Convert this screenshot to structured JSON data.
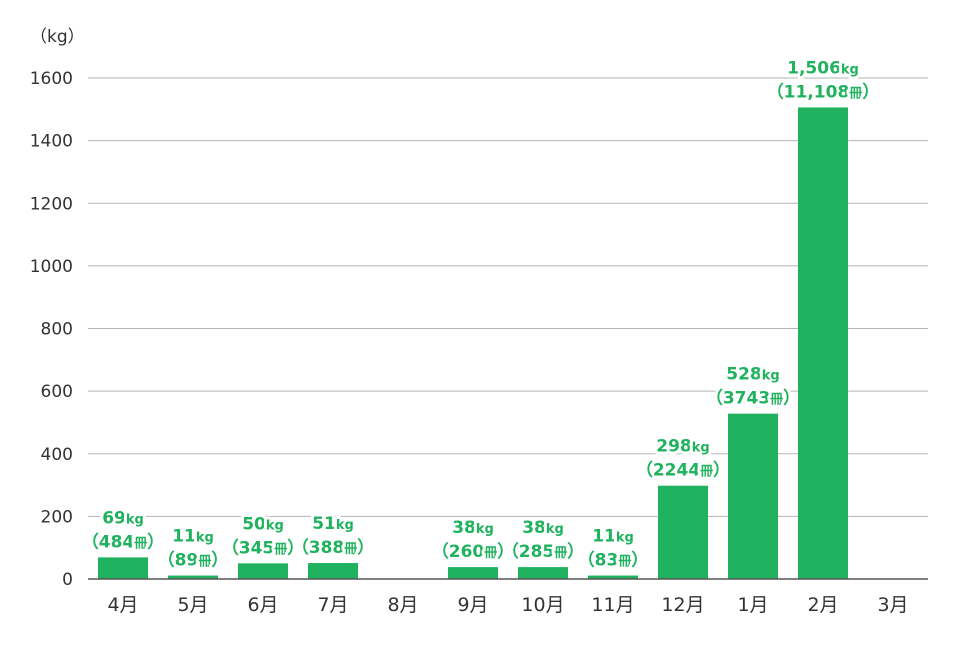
{
  "chart_data": {
    "type": "bar",
    "unit_label": "（kg）",
    "ylim": [
      0,
      1600
    ],
    "yticks": [
      0,
      200,
      400,
      600,
      800,
      1000,
      1200,
      1400,
      1600
    ],
    "grid": true,
    "bar_color": "#21b25f",
    "grid_color": "#b5b5b5",
    "categories": [
      "4月",
      "5月",
      "6月",
      "7月",
      "8月",
      "9月",
      "10月",
      "11月",
      "12月",
      "1月",
      "2月",
      "3月"
    ],
    "values": [
      69,
      11,
      50,
      51,
      null,
      38,
      38,
      11,
      298,
      528,
      1506,
      null
    ],
    "labels": [
      {
        "weight": "69",
        "weight_unit": "kg",
        "count_open": "（484",
        "count_unit": "冊",
        "count_close": "）"
      },
      {
        "weight": "11",
        "weight_unit": "kg",
        "count_open": "（89",
        "count_unit": "冊",
        "count_close": "）"
      },
      {
        "weight": "50",
        "weight_unit": "kg",
        "count_open": "（345",
        "count_unit": "冊",
        "count_close": "）"
      },
      {
        "weight": "51",
        "weight_unit": "kg",
        "count_open": "（388",
        "count_unit": "冊",
        "count_close": "）"
      },
      null,
      {
        "weight": "38",
        "weight_unit": "kg",
        "count_open": "（260",
        "count_unit": "冊",
        "count_close": "）"
      },
      {
        "weight": "38",
        "weight_unit": "kg",
        "count_open": "（285",
        "count_unit": "冊",
        "count_close": "）"
      },
      {
        "weight": "11",
        "weight_unit": "kg",
        "count_open": "（83",
        "count_unit": "冊",
        "count_close": "）"
      },
      {
        "weight": "298",
        "weight_unit": "kg",
        "count_open": "（2244",
        "count_unit": "冊",
        "count_close": "）"
      },
      {
        "weight": "528",
        "weight_unit": "kg",
        "count_open": "（3743",
        "count_unit": "冊",
        "count_close": "）"
      },
      {
        "weight": "1,506",
        "weight_unit": "kg",
        "count_open": "（11,108",
        "count_unit": "冊",
        "count_close": "）"
      },
      null
    ]
  }
}
